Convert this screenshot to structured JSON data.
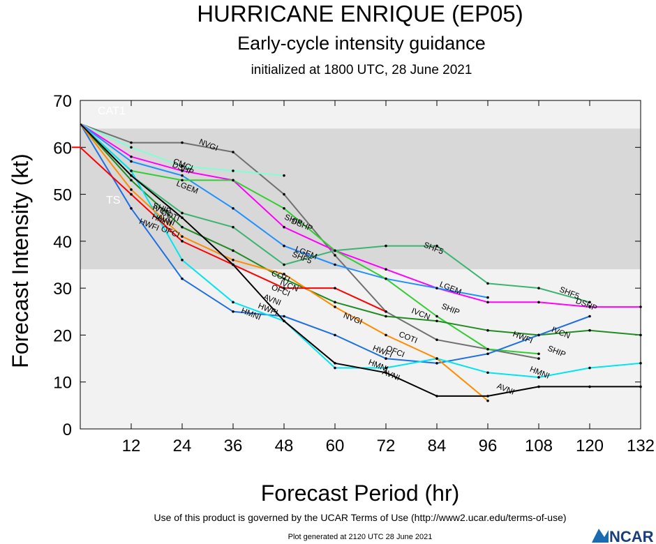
{
  "header": {
    "title": "HURRICANE ENRIQUE (EP05)",
    "subtitle": "Early-cycle intensity guidance",
    "initialized": "initialized at 1800 UTC, 28 June 2021"
  },
  "footer": {
    "terms": "Use of this product is governed by the UCAR Terms of Use (http://www2.ucar.edu/terms-of-use)",
    "generated": "Plot generated at 2120 UTC   28 June 2021",
    "logo_text": "NCAR"
  },
  "colors": {
    "band_dark": "#d8d8d8",
    "band_light": "#f2f2f2"
  },
  "chart_data": {
    "type": "line",
    "xlabel": "Forecast Period (hr)",
    "ylabel": "Forecast Intensity (kt)",
    "xlim": [
      0,
      132
    ],
    "ylim": [
      0,
      70
    ],
    "xticks": [
      12,
      24,
      36,
      48,
      60,
      72,
      84,
      96,
      108,
      120,
      132
    ],
    "yticks": [
      0,
      10,
      20,
      30,
      40,
      50,
      60,
      70
    ],
    "bands": [
      {
        "label": "CAT1",
        "from": 64,
        "to": 70,
        "shade": "light"
      },
      {
        "label": "TS",
        "from": 34,
        "to": 64,
        "shade": "dark"
      }
    ],
    "series": [
      {
        "name": "NVGI",
        "color": "#707070",
        "points": [
          [
            0,
            65
          ],
          [
            12,
            61
          ],
          [
            24,
            61
          ],
          [
            36,
            59
          ],
          [
            48,
            50
          ],
          [
            60,
            37
          ],
          [
            72,
            25
          ],
          [
            84,
            19
          ],
          [
            96,
            17
          ],
          [
            108,
            15
          ]
        ],
        "labels": [
          [
            30,
            60
          ],
          [
            64,
            23
          ]
        ]
      },
      {
        "name": "CMCI",
        "color": "#7fffd4",
        "points": [
          [
            0,
            65
          ],
          [
            12,
            60
          ],
          [
            24,
            56
          ],
          [
            36,
            55
          ],
          [
            48,
            54
          ]
        ],
        "labels": [
          [
            24,
            55.8
          ]
        ]
      },
      {
        "name": "DSHP",
        "color": "#ff00ff",
        "points": [
          [
            0,
            65
          ],
          [
            12,
            58
          ],
          [
            24,
            55
          ],
          [
            36,
            53
          ],
          [
            48,
            43
          ],
          [
            60,
            38
          ],
          [
            72,
            34
          ],
          [
            84,
            30
          ],
          [
            96,
            27
          ],
          [
            108,
            27
          ],
          [
            120,
            26
          ],
          [
            132,
            26
          ]
        ],
        "labels": [
          [
            24,
            55
          ],
          [
            52,
            43
          ],
          [
            119,
            26
          ]
        ]
      },
      {
        "name": "LGEM",
        "color": "#1e90ff",
        "points": [
          [
            0,
            65
          ],
          [
            12,
            57
          ],
          [
            24,
            54
          ],
          [
            36,
            47
          ],
          [
            48,
            39
          ],
          [
            60,
            35
          ],
          [
            72,
            32
          ],
          [
            84,
            30
          ],
          [
            96,
            28
          ]
        ],
        "labels": [
          [
            25,
            51
          ],
          [
            53,
            37
          ],
          [
            87,
            29.5
          ]
        ]
      },
      {
        "name": "SHIP",
        "color": "#32cd32",
        "points": [
          [
            0,
            65
          ],
          [
            12,
            55
          ],
          [
            24,
            53
          ],
          [
            36,
            53
          ],
          [
            48,
            47
          ],
          [
            60,
            38
          ],
          [
            72,
            32
          ],
          [
            84,
            24
          ],
          [
            96,
            17
          ],
          [
            108,
            16
          ]
        ],
        "labels": [
          [
            19,
            46.5
          ],
          [
            50,
            44
          ],
          [
            87,
            25
          ],
          [
            112,
            16
          ]
        ]
      },
      {
        "name": "SHF5",
        "color": "#3cb371",
        "points": [
          [
            0,
            65
          ],
          [
            12,
            54
          ],
          [
            24,
            46
          ],
          [
            36,
            43
          ],
          [
            48,
            35
          ],
          [
            60,
            38
          ],
          [
            72,
            39
          ],
          [
            84,
            39
          ],
          [
            96,
            31
          ],
          [
            108,
            30
          ],
          [
            120,
            27
          ]
        ],
        "labels": [
          [
            52,
            36
          ],
          [
            83,
            38
          ],
          [
            115,
            28.5
          ]
        ]
      },
      {
        "name": "IVCN",
        "color": "#228b22",
        "points": [
          [
            0,
            65
          ],
          [
            12,
            53
          ],
          [
            24,
            43
          ],
          [
            36,
            38
          ],
          [
            48,
            32
          ],
          [
            60,
            27
          ],
          [
            72,
            24
          ],
          [
            84,
            23
          ],
          [
            96,
            21
          ],
          [
            108,
            20
          ],
          [
            120,
            21
          ],
          [
            132,
            20
          ]
        ],
        "labels": [
          [
            19,
            46
          ],
          [
            49,
            30
          ],
          [
            80,
            24
          ],
          [
            113,
            20
          ]
        ]
      },
      {
        "name": "HWFI",
        "color": "#1e6fe0",
        "points": [
          [
            0,
            65
          ],
          [
            12,
            47
          ],
          [
            24,
            32
          ],
          [
            36,
            25
          ],
          [
            48,
            24
          ],
          [
            60,
            20
          ],
          [
            72,
            15
          ],
          [
            84,
            14
          ],
          [
            96,
            16
          ],
          [
            108,
            20
          ],
          [
            120,
            24
          ]
        ],
        "labels": [
          [
            16,
            43
          ],
          [
            44,
            25
          ],
          [
            71,
            16
          ],
          [
            104,
            19
          ]
        ]
      },
      {
        "name": "HMNI",
        "color": "#00e5ee",
        "points": [
          [
            0,
            65
          ],
          [
            12,
            55
          ],
          [
            24,
            36
          ],
          [
            36,
            27
          ],
          [
            48,
            23
          ],
          [
            60,
            13
          ],
          [
            72,
            13
          ],
          [
            84,
            15
          ],
          [
            96,
            12
          ],
          [
            108,
            11
          ],
          [
            120,
            13
          ],
          [
            132,
            14
          ]
        ],
        "labels": [
          [
            19,
            44
          ],
          [
            40,
            24
          ],
          [
            70,
            13
          ],
          [
            108,
            11.5
          ]
        ]
      },
      {
        "name": "OFCI",
        "color": "#ff8c00",
        "points": [
          [
            0,
            65
          ],
          [
            12,
            51
          ],
          [
            24,
            41
          ],
          [
            36,
            36
          ],
          [
            48,
            33
          ],
          [
            60,
            26
          ],
          [
            72,
            20
          ],
          [
            84,
            15
          ],
          [
            96,
            6
          ]
        ],
        "labels": [
          [
            21,
            41.5
          ],
          [
            47,
            29
          ],
          [
            74,
            16
          ]
        ]
      },
      {
        "name": "COTI",
        "color": "#ff0000",
        "points": [
          [
            -2,
            60
          ],
          [
            0,
            60
          ],
          [
            12,
            50
          ],
          [
            24,
            40
          ],
          [
            36,
            35
          ],
          [
            48,
            30
          ],
          [
            60,
            30
          ],
          [
            72,
            25
          ]
        ],
        "labels": [
          [
            21,
            45
          ],
          [
            47,
            32
          ],
          [
            77,
            19
          ]
        ]
      },
      {
        "name": "AVNI",
        "color": "#000000",
        "points": [
          [
            0,
            65
          ],
          [
            12,
            54
          ],
          [
            24,
            45
          ],
          [
            36,
            35
          ],
          [
            48,
            23
          ],
          [
            60,
            14
          ],
          [
            72,
            12
          ],
          [
            84,
            7
          ],
          [
            96,
            7
          ],
          [
            108,
            9
          ],
          [
            120,
            9
          ],
          [
            132,
            9
          ]
        ],
        "labels": [
          [
            20,
            44
          ],
          [
            45,
            27
          ],
          [
            73,
            11
          ],
          [
            100,
            8
          ]
        ]
      }
    ]
  }
}
